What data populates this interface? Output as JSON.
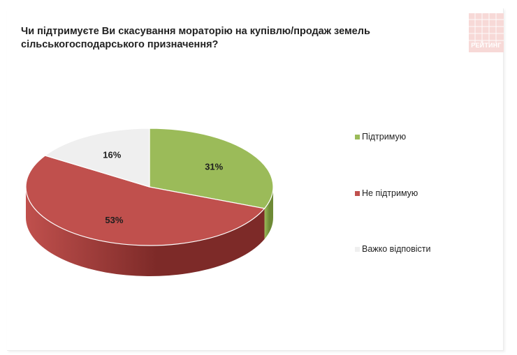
{
  "title_lines": [
    "Чи підтримуєте Ви скасування мораторію на купівлю/продаж земель",
    "сільськогосподарського призначення?"
  ],
  "logo_text": "РЕЙТИНГ",
  "chart_data": {
    "type": "pie",
    "style": "3d",
    "title": "Чи підтримуєте Ви скасування мораторію на купівлю/продаж земель сільськогосподарського призначення?",
    "categories": [
      "Підтримую",
      "Не підтримую",
      "Важко відповісти"
    ],
    "values": [
      31,
      53,
      16
    ],
    "value_labels": [
      "31%",
      "53%",
      "16%"
    ],
    "colors": [
      "#9bbb59",
      "#c0504d",
      "#efefef"
    ],
    "side_colors": [
      "#6e8a36",
      "#7d2a28",
      "#c6c6c6"
    ],
    "legend_position": "right"
  }
}
